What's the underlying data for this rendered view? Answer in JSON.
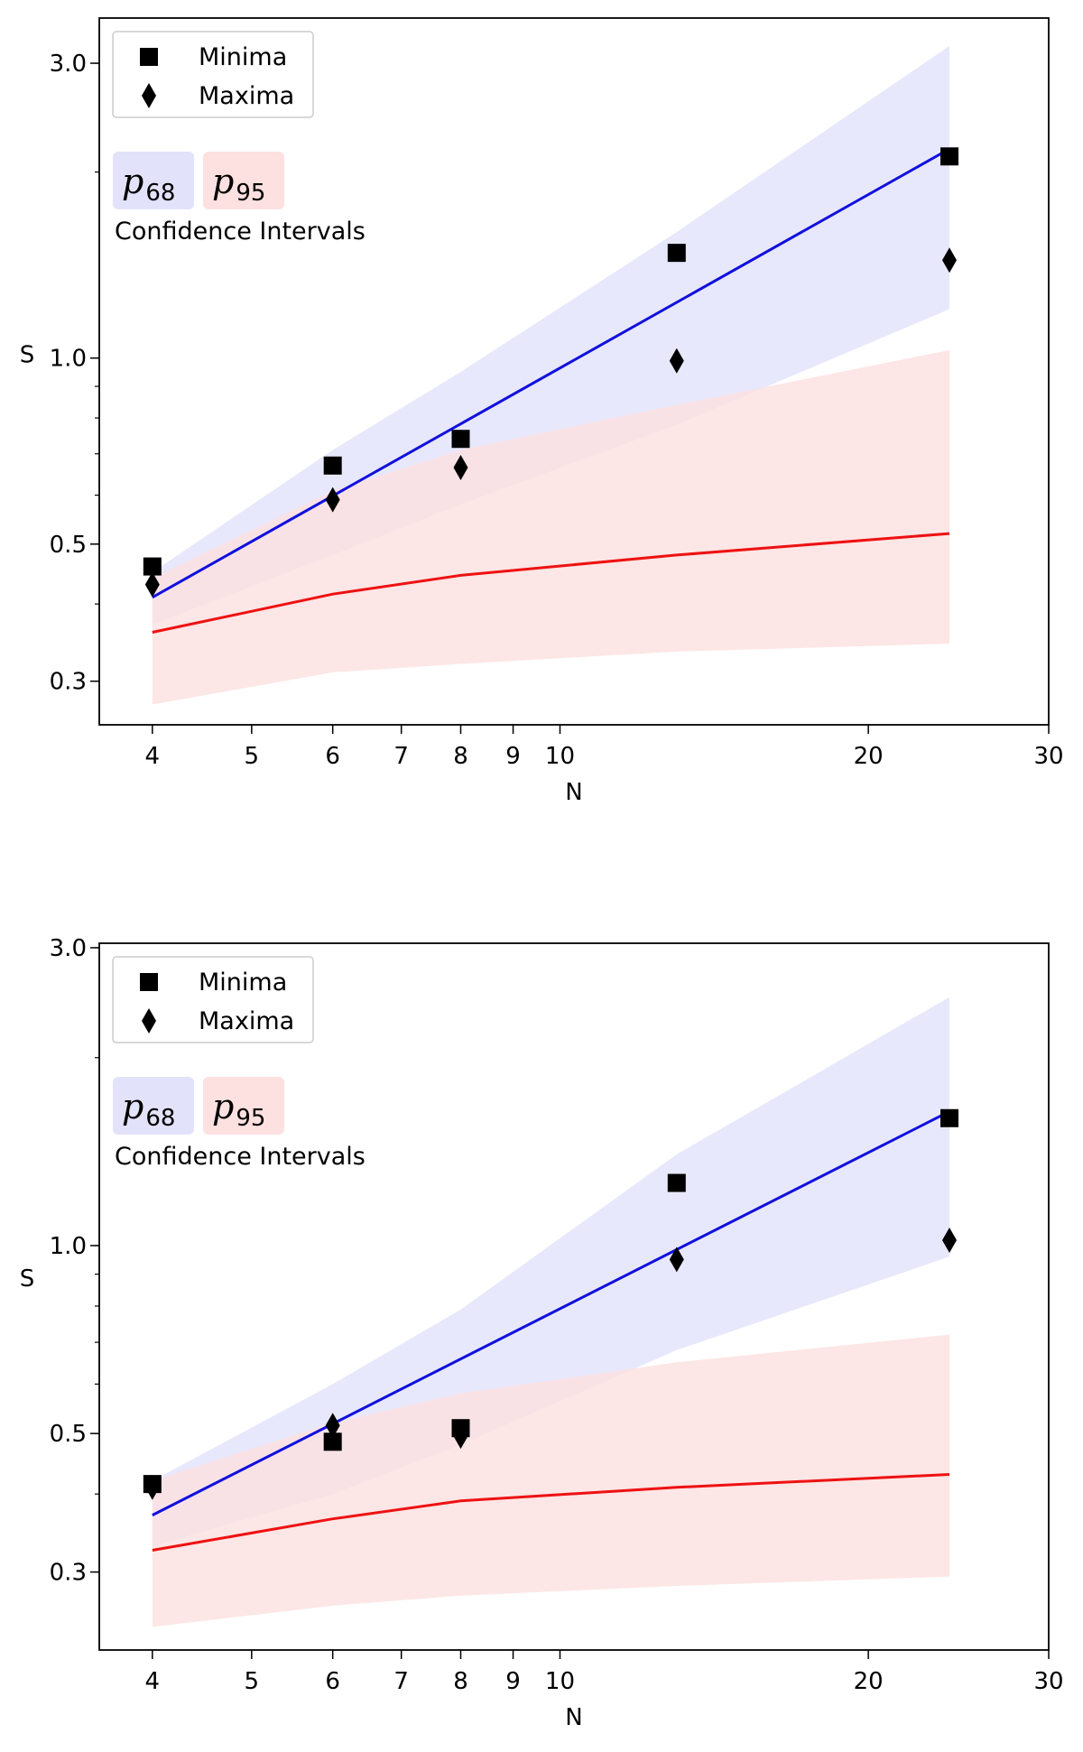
{
  "chart_data": [
    {
      "type": "scatter",
      "xlabel": "N",
      "ylabel": "S",
      "xscale": "log",
      "yscale": "log",
      "xlim": [
        3.55,
        30
      ],
      "ylim": [
        0.255,
        3.55
      ],
      "xticks": [
        4,
        5,
        6,
        7,
        8,
        9,
        10,
        20,
        30
      ],
      "yticks": [
        0.3,
        0.5,
        1.0,
        3.0
      ],
      "ytick_labels": [
        "0.3",
        "0.5",
        "1.0",
        "3.0"
      ],
      "grid": false,
      "legend": {
        "placement": "top-left",
        "entries": [
          {
            "label": "Minima",
            "marker": "square",
            "color": "#000000"
          },
          {
            "label": "Maxima",
            "marker": "diamond",
            "color": "#000000"
          }
        ]
      },
      "ci_legend": {
        "placement": "upper-left",
        "p68_symbol": "p",
        "p68_sub": "68",
        "p95_symbol": "p",
        "p95_sub": "95",
        "caption": "Confidence Intervals"
      },
      "series": [
        {
          "name": "Minima",
          "kind": "points",
          "marker": "square",
          "x": [
            4,
            6,
            8,
            13,
            24
          ],
          "y": [
            0.46,
            0.67,
            0.74,
            1.48,
            2.12
          ]
        },
        {
          "name": "Maxima",
          "kind": "points",
          "marker": "diamond",
          "x": [
            4,
            6,
            8,
            13,
            24
          ],
          "y": [
            0.43,
            0.59,
            0.665,
            0.99,
            1.44
          ]
        },
        {
          "kind": "line",
          "color": "#1010dd",
          "x": [
            4,
            24
          ],
          "y": [
            0.41,
            2.18
          ]
        },
        {
          "kind": "line",
          "color": "#ee1111",
          "x": [
            4,
            6,
            8,
            13,
            24
          ],
          "y": [
            0.36,
            0.415,
            0.445,
            0.48,
            0.52
          ]
        },
        {
          "kind": "band",
          "color": "#e2e2fb",
          "x": [
            4,
            6,
            8,
            13,
            24
          ],
          "upper": [
            0.45,
            0.71,
            0.95,
            1.6,
            3.2
          ],
          "lower": [
            0.37,
            0.48,
            0.58,
            0.78,
            1.2
          ]
        },
        {
          "kind": "band",
          "color": "#fde0e0",
          "x": [
            4,
            6,
            8,
            13,
            24
          ],
          "upper": [
            0.44,
            0.61,
            0.71,
            0.84,
            1.03
          ],
          "lower": [
            0.275,
            0.31,
            0.32,
            0.335,
            0.345
          ]
        }
      ]
    },
    {
      "type": "scatter",
      "xlabel": "N",
      "ylabel": "S",
      "xscale": "log",
      "yscale": "log",
      "xlim": [
        3.55,
        30
      ],
      "ylim": [
        0.225,
        3.05
      ],
      "xticks": [
        4,
        5,
        6,
        7,
        8,
        9,
        10,
        20,
        30
      ],
      "yticks": [
        0.3,
        0.5,
        1.0,
        3.0
      ],
      "ytick_labels": [
        "0.3",
        "0.5",
        "1.0",
        "3.0"
      ],
      "grid": false,
      "legend": {
        "placement": "top-left",
        "entries": [
          {
            "label": "Minima",
            "marker": "square",
            "color": "#000000"
          },
          {
            "label": "Maxima",
            "marker": "diamond",
            "color": "#000000"
          }
        ]
      },
      "ci_legend": {
        "placement": "upper-left",
        "p68_symbol": "p",
        "p68_sub": "68",
        "p95_symbol": "p",
        "p95_sub": "95",
        "caption": "Confidence Intervals"
      },
      "series": [
        {
          "name": "Minima",
          "kind": "points",
          "marker": "square",
          "x": [
            4,
            6,
            8,
            13,
            24
          ],
          "y": [
            0.415,
            0.485,
            0.51,
            1.26,
            1.6
          ]
        },
        {
          "name": "Maxima",
          "kind": "points",
          "marker": "diamond",
          "x": [
            4,
            6,
            8,
            13,
            24
          ],
          "y": [
            0.41,
            0.515,
            0.495,
            0.95,
            1.02
          ]
        },
        {
          "kind": "line",
          "color": "#1010dd",
          "x": [
            4,
            24
          ],
          "y": [
            0.37,
            1.64
          ]
        },
        {
          "kind": "line",
          "color": "#ee1111",
          "x": [
            4,
            6,
            8,
            13,
            24
          ],
          "y": [
            0.325,
            0.365,
            0.39,
            0.41,
            0.43
          ]
        },
        {
          "kind": "band",
          "color": "#e2e2fb",
          "x": [
            4,
            6,
            8,
            13,
            24
          ],
          "upper": [
            0.42,
            0.6,
            0.79,
            1.4,
            2.5
          ],
          "lower": [
            0.33,
            0.4,
            0.48,
            0.68,
            0.96
          ]
        },
        {
          "kind": "band",
          "color": "#fde0e0",
          "x": [
            4,
            6,
            8,
            13,
            24
          ],
          "upper": [
            0.42,
            0.52,
            0.58,
            0.65,
            0.72
          ],
          "lower": [
            0.245,
            0.265,
            0.275,
            0.285,
            0.295
          ]
        }
      ]
    }
  ]
}
